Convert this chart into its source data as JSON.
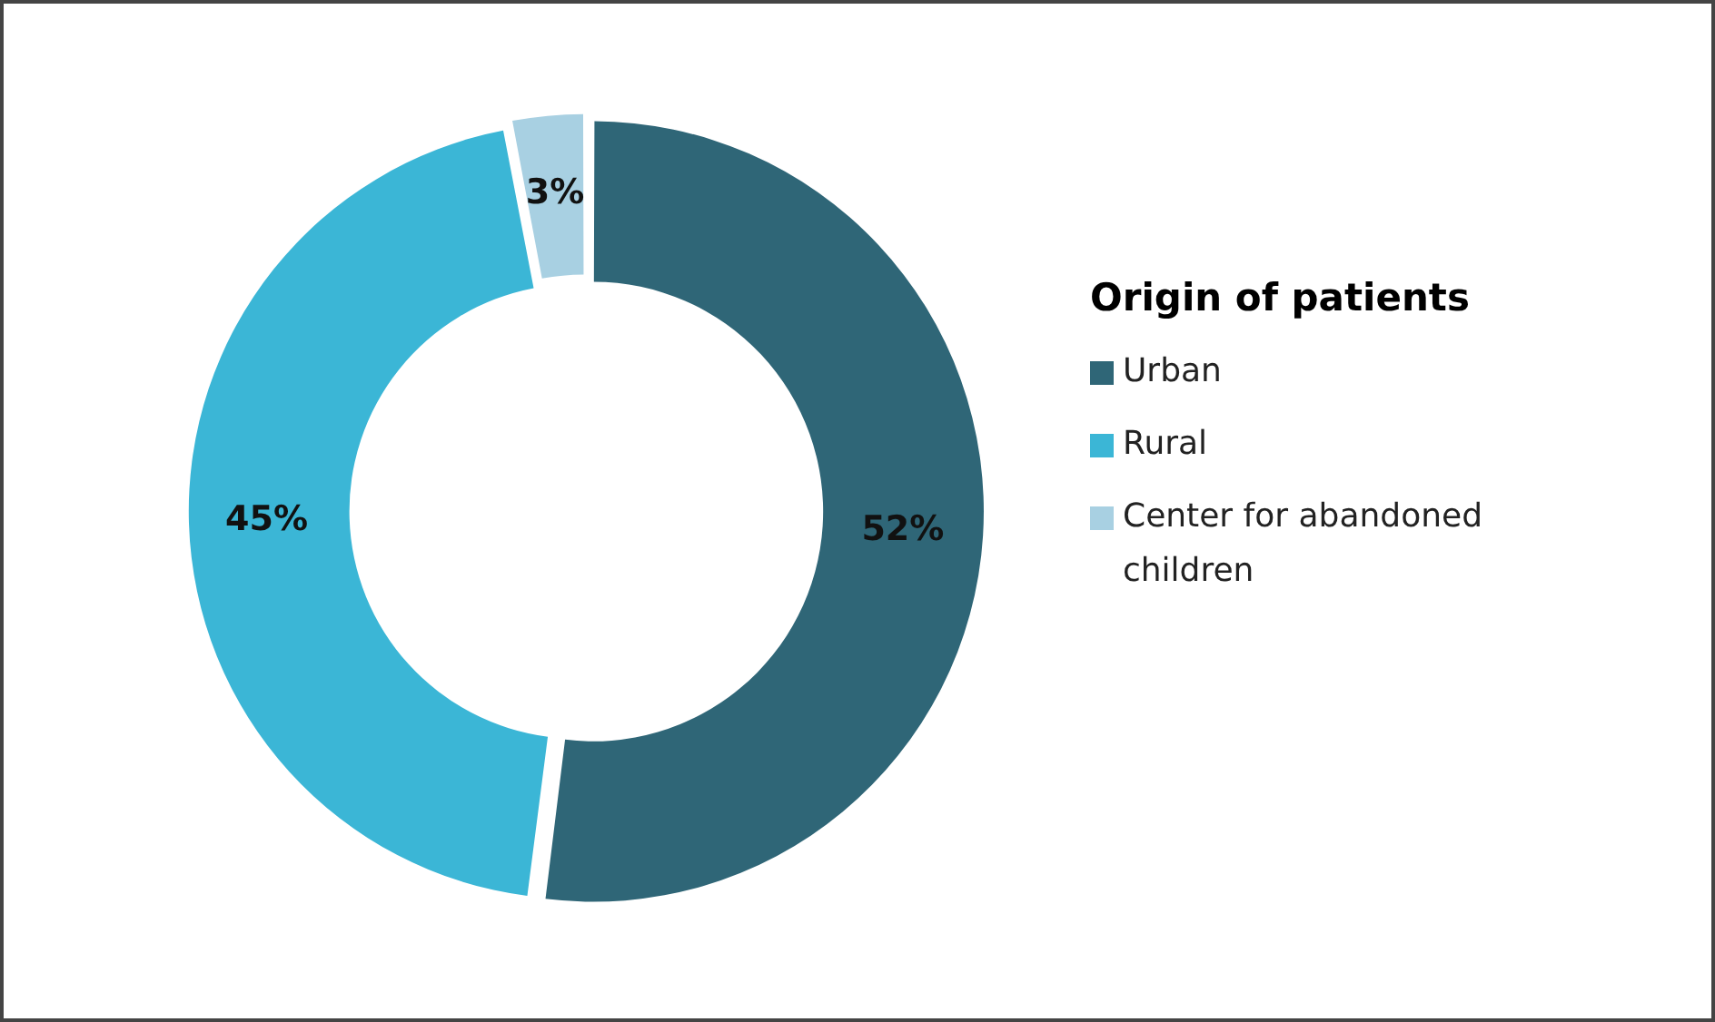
{
  "chart_data": {
    "type": "donut",
    "legend_title": "Origin of patients",
    "legend": "right",
    "value_labels": [
      "52%",
      "45%",
      "3%"
    ],
    "categories": [
      "Urban",
      "Rural",
      "Center for abandoned children"
    ],
    "values": [
      52,
      45,
      3
    ],
    "colors": [
      "#2f6677",
      "#3bb6d6",
      "#a8d0e2"
    ]
  }
}
